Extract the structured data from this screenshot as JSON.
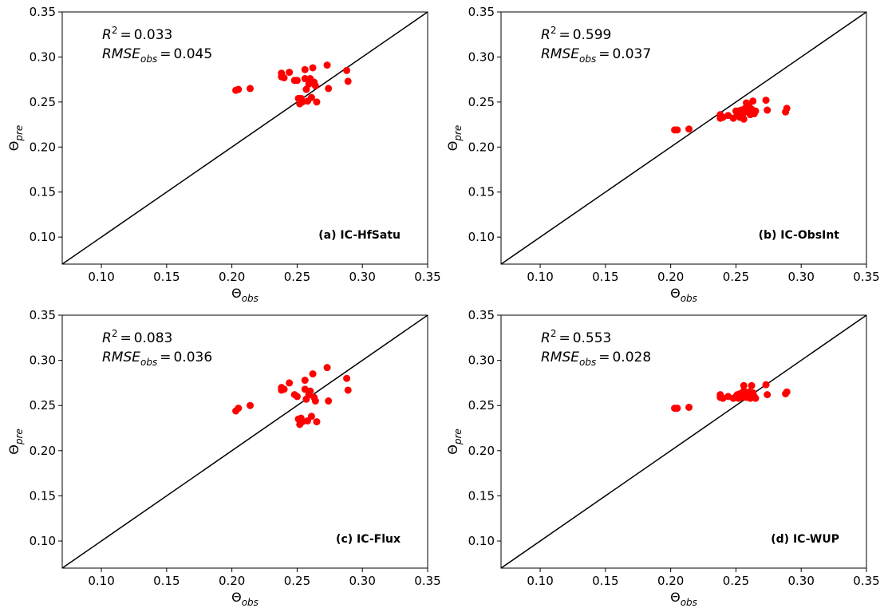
{
  "chart_data": [
    {
      "type": "scatter",
      "panel_label": "(a) IC-HfSatu",
      "stats": [
        {
          "label": "R",
          "sup": "2",
          "sign": "=",
          "value": 0.033
        },
        {
          "label": "RMSE",
          "sub": "obs",
          "sign": "=",
          "value": 0.045
        }
      ],
      "xlabel": {
        "base": "Θ",
        "sub": "obs"
      },
      "ylabel": {
        "base": "Θ",
        "sub": "pre"
      },
      "color": "#ff0000",
      "x": [
        0.203,
        0.205,
        0.214,
        0.238,
        0.238,
        0.24,
        0.244,
        0.248,
        0.25,
        0.251,
        0.252,
        0.253,
        0.254,
        0.256,
        0.256,
        0.257,
        0.258,
        0.259,
        0.26,
        0.261,
        0.262,
        0.263,
        0.264,
        0.265,
        0.273,
        0.274,
        0.288,
        0.289
      ],
      "values": [
        0.263,
        0.264,
        0.265,
        0.282,
        0.278,
        0.277,
        0.283,
        0.274,
        0.274,
        0.254,
        0.248,
        0.254,
        0.25,
        0.276,
        0.286,
        0.264,
        0.251,
        0.27,
        0.276,
        0.255,
        0.288,
        0.272,
        0.268,
        0.25,
        0.291,
        0.265,
        0.285,
        0.273
      ],
      "xlim": [
        0.07,
        0.35
      ],
      "ylim": [
        0.07,
        0.35
      ],
      "xticks": [
        {
          "value": 0.1,
          "label": "0.10"
        },
        0.15,
        {
          "value": 0.2,
          "label": "0.20"
        },
        0.25,
        {
          "value": 0.3,
          "label": "0.30"
        },
        0.35
      ],
      "yticks": [
        {
          "value": 0.1,
          "label": "0.10"
        },
        0.15,
        {
          "value": 0.2,
          "label": "0.20"
        },
        0.25,
        {
          "value": 0.3,
          "label": "0.30"
        },
        0.35
      ]
    },
    {
      "type": "scatter",
      "panel_label": "(b) IC-ObsInt",
      "stats": [
        {
          "label": "R",
          "sup": "2",
          "sign": "=",
          "value": 0.599
        },
        {
          "label": "RMSE",
          "sub": "obs",
          "sign": "=",
          "value": 0.037
        }
      ],
      "xlabel": {
        "base": "Θ",
        "sub": "obs"
      },
      "ylabel": {
        "base": "Θ",
        "sub": "pre"
      },
      "color": "#ff0000",
      "x": [
        0.203,
        0.205,
        0.214,
        0.238,
        0.238,
        0.24,
        0.244,
        0.248,
        0.25,
        0.251,
        0.252,
        0.253,
        0.254,
        0.256,
        0.256,
        0.257,
        0.258,
        0.259,
        0.26,
        0.261,
        0.262,
        0.263,
        0.264,
        0.265,
        0.273,
        0.274,
        0.288,
        0.289
      ],
      "values": [
        0.219,
        0.219,
        0.22,
        0.236,
        0.232,
        0.233,
        0.235,
        0.232,
        0.24,
        0.236,
        0.24,
        0.233,
        0.241,
        0.231,
        0.238,
        0.243,
        0.249,
        0.24,
        0.245,
        0.236,
        0.242,
        0.251,
        0.237,
        0.24,
        0.252,
        0.241,
        0.239,
        0.243
      ],
      "xlim": [
        0.07,
        0.35
      ],
      "ylim": [
        0.07,
        0.35
      ],
      "xticks": [
        {
          "value": 0.1,
          "label": "0.10"
        },
        0.15,
        {
          "value": 0.2,
          "label": "0.20"
        },
        0.25,
        {
          "value": 0.3,
          "label": "0.30"
        },
        0.35
      ],
      "yticks": [
        {
          "value": 0.1,
          "label": "0.10"
        },
        0.15,
        {
          "value": 0.2,
          "label": "0.20"
        },
        0.25,
        {
          "value": 0.3,
          "label": "0.30"
        },
        0.35
      ]
    },
    {
      "type": "scatter",
      "panel_label": "(c) IC-Flux",
      "stats": [
        {
          "label": "R",
          "sup": "2",
          "sign": "=",
          "value": 0.083
        },
        {
          "label": "RMSE",
          "sub": "obs",
          "sign": "=",
          "value": 0.036
        }
      ],
      "xlabel": {
        "base": "Θ",
        "sub": "obs"
      },
      "ylabel": {
        "base": "Θ",
        "sub": "pre"
      },
      "color": "#ff0000",
      "x": [
        0.203,
        0.205,
        0.214,
        0.238,
        0.238,
        0.24,
        0.244,
        0.248,
        0.25,
        0.251,
        0.252,
        0.253,
        0.254,
        0.256,
        0.256,
        0.257,
        0.258,
        0.259,
        0.26,
        0.261,
        0.262,
        0.263,
        0.264,
        0.265,
        0.273,
        0.274,
        0.288,
        0.289
      ],
      "values": [
        0.244,
        0.247,
        0.25,
        0.27,
        0.267,
        0.268,
        0.275,
        0.262,
        0.26,
        0.235,
        0.229,
        0.236,
        0.232,
        0.268,
        0.278,
        0.257,
        0.233,
        0.262,
        0.266,
        0.238,
        0.285,
        0.259,
        0.255,
        0.232,
        0.292,
        0.255,
        0.28,
        0.267
      ],
      "xlim": [
        0.07,
        0.35
      ],
      "ylim": [
        0.07,
        0.35
      ],
      "xticks": [
        {
          "value": 0.1,
          "label": "0.10"
        },
        0.15,
        {
          "value": 0.2,
          "label": "0.20"
        },
        0.25,
        {
          "value": 0.3,
          "label": "0.30"
        },
        0.35
      ],
      "yticks": [
        {
          "value": 0.1,
          "label": "0.10"
        },
        0.15,
        {
          "value": 0.2,
          "label": "0.20"
        },
        0.25,
        {
          "value": 0.3,
          "label": "0.30"
        },
        0.35
      ]
    },
    {
      "type": "scatter",
      "panel_label": "(d) IC-WUP",
      "stats": [
        {
          "label": "R",
          "sup": "2",
          "sign": "=",
          "value": 0.553
        },
        {
          "label": "RMSE",
          "sub": "obs",
          "sign": "=",
          "value": 0.028
        }
      ],
      "xlabel": {
        "base": "Θ",
        "sub": "obs"
      },
      "ylabel": {
        "base": "Θ",
        "sub": "pre"
      },
      "color": "#ff0000",
      "x": [
        0.203,
        0.205,
        0.214,
        0.238,
        0.238,
        0.24,
        0.244,
        0.248,
        0.25,
        0.251,
        0.252,
        0.253,
        0.254,
        0.256,
        0.256,
        0.257,
        0.258,
        0.259,
        0.26,
        0.261,
        0.262,
        0.263,
        0.264,
        0.265,
        0.273,
        0.274,
        0.288,
        0.289
      ],
      "values": [
        0.247,
        0.247,
        0.248,
        0.262,
        0.259,
        0.258,
        0.26,
        0.258,
        0.26,
        0.262,
        0.258,
        0.263,
        0.259,
        0.266,
        0.272,
        0.26,
        0.259,
        0.262,
        0.265,
        0.258,
        0.272,
        0.264,
        0.26,
        0.258,
        0.273,
        0.262,
        0.263,
        0.265
      ],
      "xlim": [
        0.07,
        0.35
      ],
      "ylim": [
        0.07,
        0.35
      ],
      "xticks": [
        {
          "value": 0.1,
          "label": "0.10"
        },
        0.15,
        {
          "value": 0.2,
          "label": "0.20"
        },
        0.25,
        {
          "value": 0.3,
          "label": "0.30"
        },
        0.35
      ],
      "yticks": [
        {
          "value": 0.1,
          "label": "0.10"
        },
        0.15,
        {
          "value": 0.2,
          "label": "0.20"
        },
        0.25,
        {
          "value": 0.3,
          "label": "0.30"
        },
        0.35
      ]
    }
  ]
}
